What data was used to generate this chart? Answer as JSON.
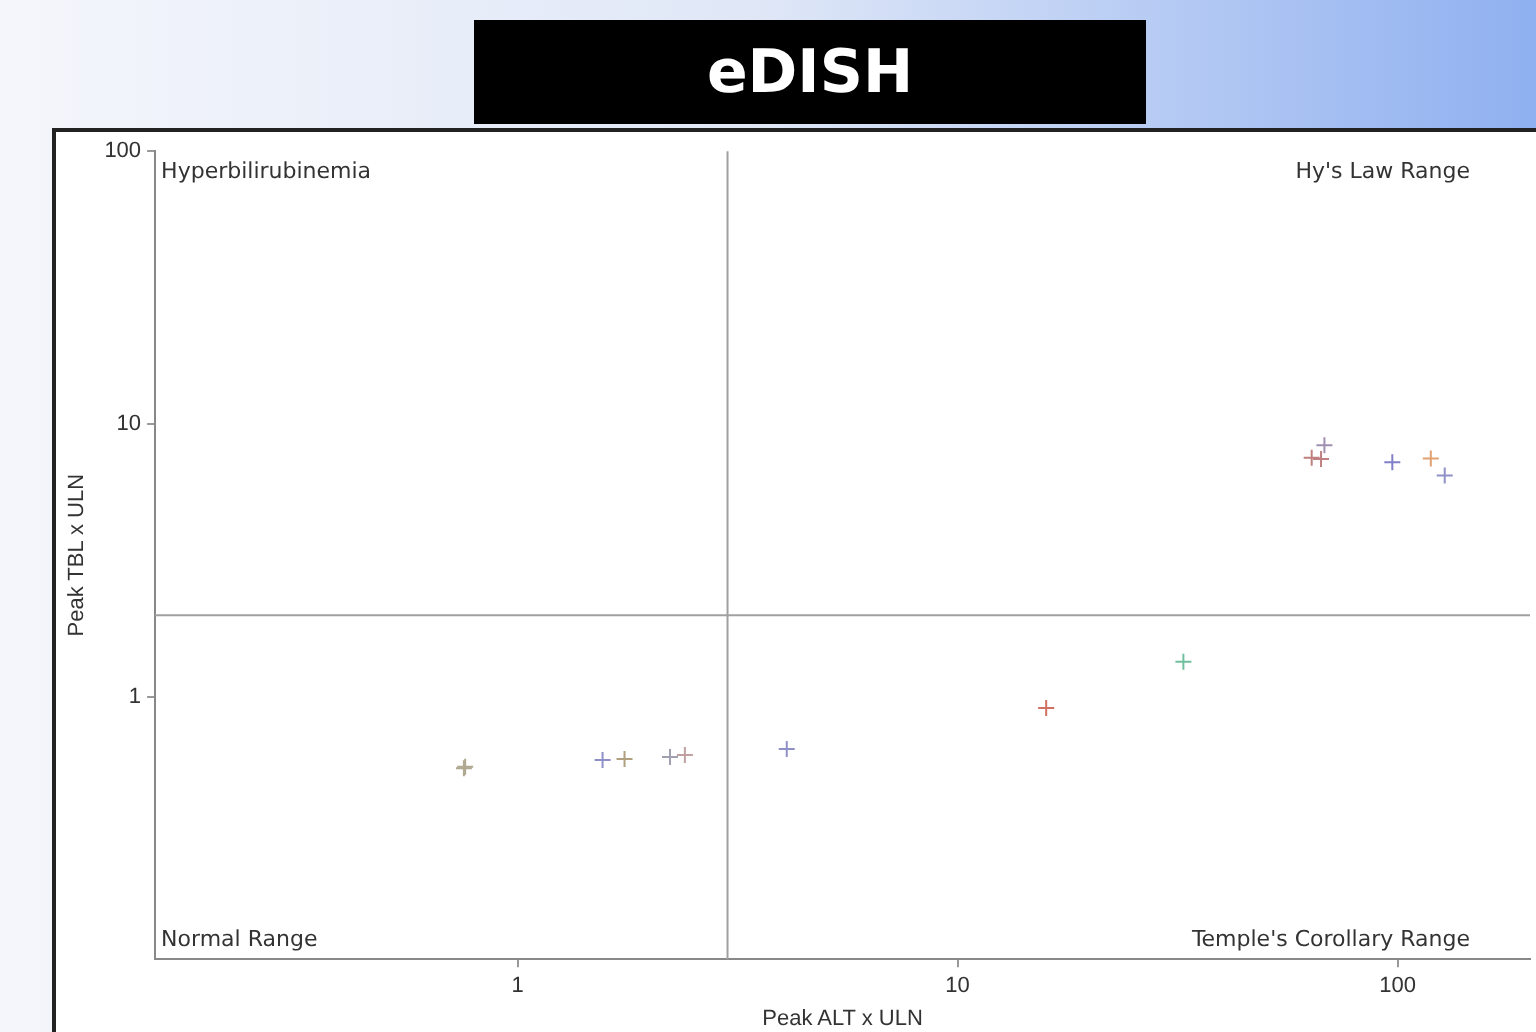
{
  "chart_data": {
    "type": "scatter",
    "title": "eDISH",
    "xlabel": "Peak ALT x ULN",
    "ylabel": "Peak TBL x ULN",
    "x": [
      0.755,
      0.76,
      1.56,
      1.75,
      2.22,
      2.4,
      4.09,
      15.9,
      32.6,
      68.2,
      63.8,
      67,
      97.3,
      119,
      128
    ],
    "values": [
      0.55,
      0.557,
      0.59,
      0.595,
      0.605,
      0.615,
      0.647,
      0.915,
      1.35,
      8.38,
      7.55,
      7.46,
      7.26,
      7.5,
      6.5
    ],
    "colors": [
      "#b0a890",
      "#b0a890",
      "#9090c8",
      "#b0a080",
      "#a0a0b0",
      "#c0a0a0",
      "#9090c8",
      "#d07060",
      "#70c0a0",
      "#a090b0",
      "#c08080",
      "#c08080",
      "#8080c8",
      "#e0a070",
      "#9090c8"
    ],
    "marker": "cross",
    "log": "xy",
    "xlim": [
      0.15,
      200
    ],
    "ylim": [
      0.11,
      100
    ],
    "xticks": [
      1,
      10,
      100
    ],
    "yticks": [
      1,
      10,
      100
    ],
    "grid": false,
    "legend": false,
    "ref_lines": [
      {
        "axis": "x",
        "value": 3,
        "color": "#a0a0a0"
      },
      {
        "axis": "y",
        "value": 2,
        "color": "#a0a0a0"
      }
    ],
    "annotations": [
      "Hyperbilirubinemia",
      "Hy's Law Range",
      "Normal Range",
      "Temple's Corollary Range"
    ]
  }
}
